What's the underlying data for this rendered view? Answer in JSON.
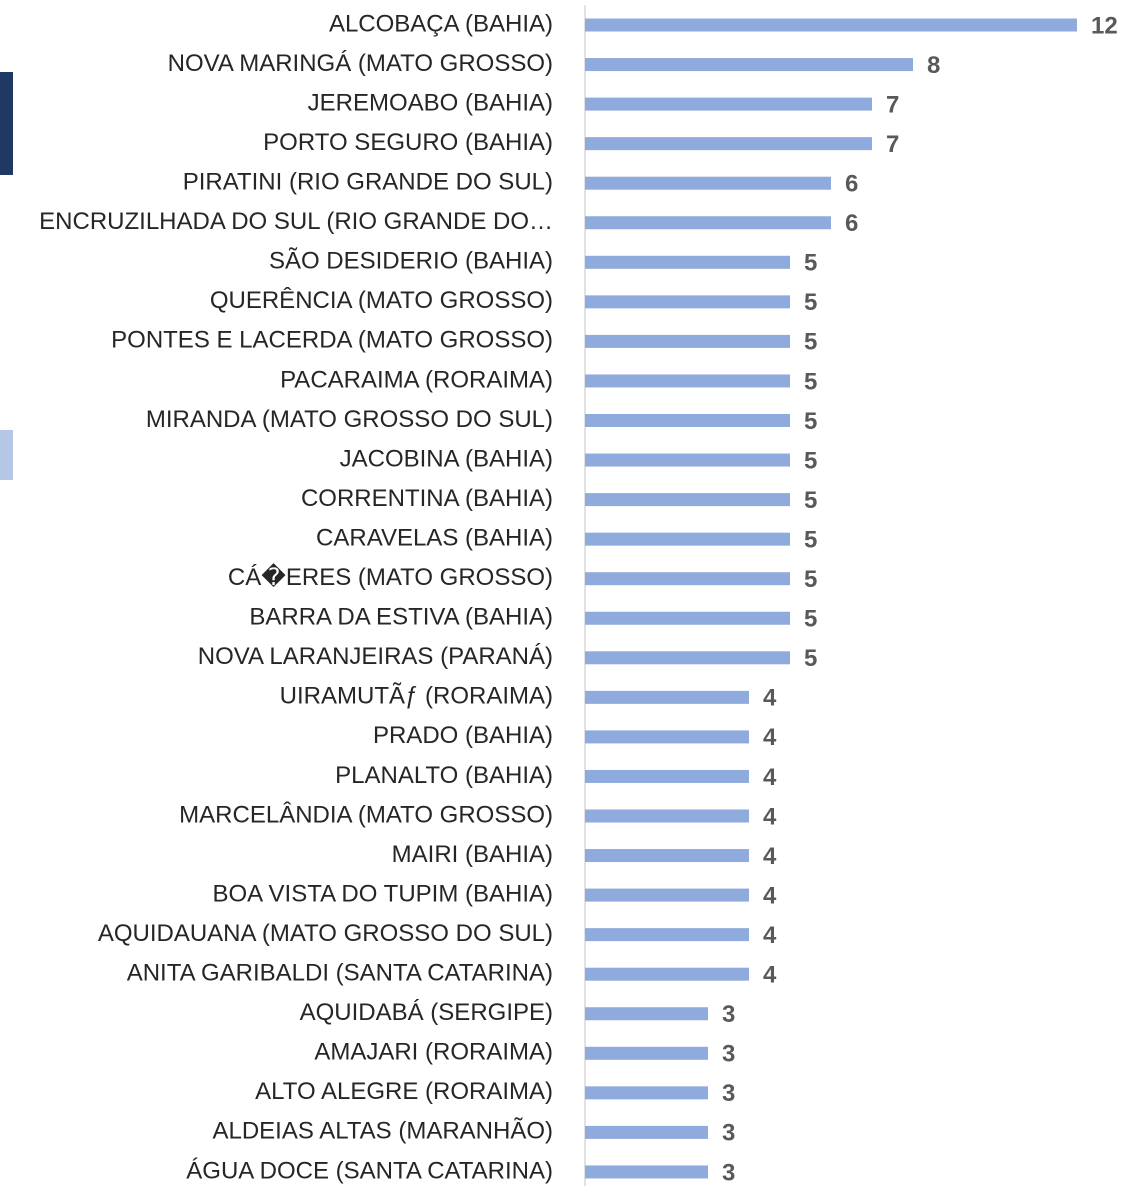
{
  "chart_data": {
    "type": "bar",
    "orientation": "horizontal",
    "categories": [
      "ALCOBAÇA (BAHIA)",
      "NOVA MARINGÁ (MATO GROSSO)",
      "JEREMOABO (BAHIA)",
      "PORTO SEGURO (BAHIA)",
      "PIRATINI (RIO GRANDE DO SUL)",
      "ENCRUZILHADA DO SUL (RIO GRANDE DO…",
      "SÃO DESIDERIO (BAHIA)",
      "QUERÊNCIA (MATO GROSSO)",
      "PONTES E LACERDA (MATO GROSSO)",
      "PACARAIMA (RORAIMA)",
      "MIRANDA (MATO GROSSO DO SUL)",
      "JACOBINA (BAHIA)",
      "CORRENTINA (BAHIA)",
      "CARAVELAS (BAHIA)",
      "CÁ�ERES (MATO GROSSO)",
      "BARRA DA ESTIVA (BAHIA)",
      "NOVA LARANJEIRAS (PARANÁ)",
      "UIRAMUTÃƒ (RORAIMA)",
      "PRADO (BAHIA)",
      "PLANALTO (BAHIA)",
      "MARCELÂNDIA (MATO GROSSO)",
      "MAIRI (BAHIA)",
      "BOA VISTA DO TUPIM (BAHIA)",
      "AQUIDAUANA (MATO GROSSO DO SUL)",
      "ANITA GARIBALDI (SANTA CATARINA)",
      "AQUIDABÁ (SERGIPE)",
      "AMAJARI (RORAIMA)",
      "ALTO ALEGRE (RORAIMA)",
      "ALDEIAS ALTAS (MARANHÃO)",
      "ÁGUA DOCE (SANTA CATARINA)"
    ],
    "values": [
      12,
      8,
      7,
      7,
      6,
      6,
      5,
      5,
      5,
      5,
      5,
      5,
      5,
      5,
      5,
      5,
      5,
      4,
      4,
      4,
      4,
      4,
      4,
      4,
      4,
      3,
      3,
      3,
      3,
      3
    ],
    "color": "#8faadc",
    "xlim": [
      0,
      12
    ]
  }
}
